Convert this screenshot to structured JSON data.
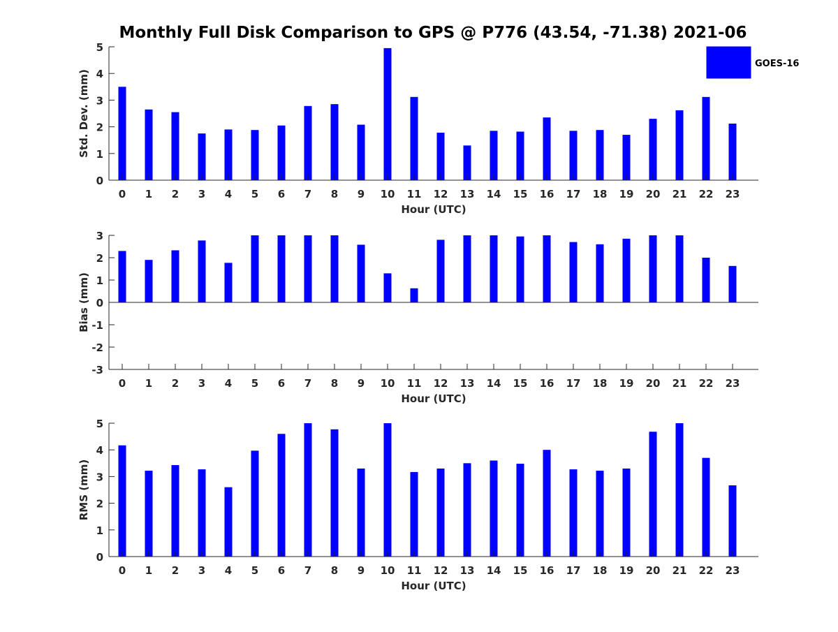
{
  "title": "Monthly Full Disk Comparison to GPS @ P776 (43.54, -71.38) 2021-06",
  "legend": {
    "label": "GOES-16",
    "placement": "top-right"
  },
  "colors": {
    "bar": "#0000ff",
    "axis": "#262626",
    "title": "#000000"
  },
  "chart_data": [
    {
      "type": "bar",
      "xlabel": "Hour (UTC)",
      "ylabel": "Std. Dev. (mm)",
      "ylim": [
        0,
        5
      ],
      "yticks": [
        "0",
        "1",
        "2",
        "3",
        "4",
        "5"
      ],
      "categories": [
        "0",
        "1",
        "2",
        "3",
        "4",
        "5",
        "6",
        "7",
        "8",
        "9",
        "10",
        "11",
        "12",
        "13",
        "14",
        "15",
        "16",
        "17",
        "18",
        "19",
        "20",
        "21",
        "22",
        "23"
      ],
      "series": [
        {
          "name": "GOES-16",
          "values": [
            3.5,
            2.65,
            2.55,
            1.75,
            1.9,
            1.88,
            2.05,
            2.78,
            2.85,
            2.08,
            4.95,
            3.12,
            1.78,
            1.3,
            1.85,
            1.82,
            2.35,
            1.85,
            1.88,
            1.7,
            2.3,
            2.62,
            3.12,
            2.12
          ]
        }
      ]
    },
    {
      "type": "bar",
      "xlabel": "Hour (UTC)",
      "ylabel": "Bias (mm)",
      "ylim": [
        -3,
        3
      ],
      "yticks": [
        "-3",
        "-2",
        "-1",
        "0",
        "1",
        "2",
        "3"
      ],
      "categories": [
        "0",
        "1",
        "2",
        "3",
        "4",
        "5",
        "6",
        "7",
        "8",
        "9",
        "10",
        "11",
        "12",
        "13",
        "14",
        "15",
        "16",
        "17",
        "18",
        "19",
        "20",
        "21",
        "22",
        "23"
      ],
      "series": [
        {
          "name": "GOES-16",
          "values": [
            2.3,
            1.9,
            2.33,
            2.77,
            1.77,
            3.0,
            3.0,
            3.0,
            3.0,
            2.58,
            1.3,
            0.63,
            2.8,
            3.0,
            3.0,
            2.95,
            3.0,
            2.7,
            2.6,
            2.85,
            3.0,
            3.0,
            2.0,
            1.63
          ]
        }
      ]
    },
    {
      "type": "bar",
      "xlabel": "Hour (UTC)",
      "ylabel": "RMS (mm)",
      "ylim": [
        0,
        5
      ],
      "yticks": [
        "0",
        "1",
        "2",
        "3",
        "4",
        "5"
      ],
      "categories": [
        "0",
        "1",
        "2",
        "3",
        "4",
        "5",
        "6",
        "7",
        "8",
        "9",
        "10",
        "11",
        "12",
        "13",
        "14",
        "15",
        "16",
        "17",
        "18",
        "19",
        "20",
        "21",
        "22",
        "23"
      ],
      "series": [
        {
          "name": "GOES-16",
          "values": [
            4.17,
            3.22,
            3.43,
            3.27,
            2.6,
            3.97,
            4.6,
            5.0,
            4.77,
            3.3,
            5.0,
            3.17,
            3.3,
            3.5,
            3.6,
            3.48,
            4.0,
            3.27,
            3.22,
            3.3,
            4.68,
            5.0,
            3.7,
            2.67
          ]
        }
      ]
    }
  ]
}
